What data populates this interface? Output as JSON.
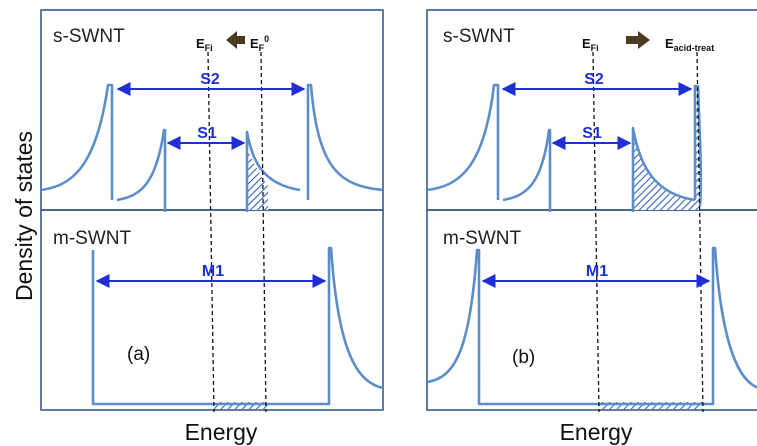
{
  "axes": {
    "ylabel": "Density of states",
    "xlabel_left": "Energy",
    "xlabel_right": "Energy"
  },
  "panel_a": {
    "top_label": "s-SWNT",
    "bottom_label": "m-SWNT",
    "letter": "(a)",
    "band_s2": "S2",
    "band_s1": "S1",
    "band_m1": "M1",
    "level_fi_main": "E",
    "level_fi_sub": "Fi",
    "level_f0_main": "E",
    "level_f0_sub": "F",
    "level_f0_sup": "0"
  },
  "panel_b": {
    "top_label": "s-SWNT",
    "bottom_label": "m-SWNT",
    "letter": "(b)",
    "band_s2": "S2",
    "band_s1": "S1",
    "band_m1": "M1",
    "level_fi_main": "E",
    "level_fi_sub": "Fi",
    "level_acid_main": "E",
    "level_acid_sub": "acid-treat"
  },
  "colors": {
    "curve": "#5b8ec9",
    "arrow": "#1f2fd6",
    "shift_arrow": "#4a3a20",
    "hatch": "#3a62c4",
    "frame": "#3b5a8a"
  }
}
